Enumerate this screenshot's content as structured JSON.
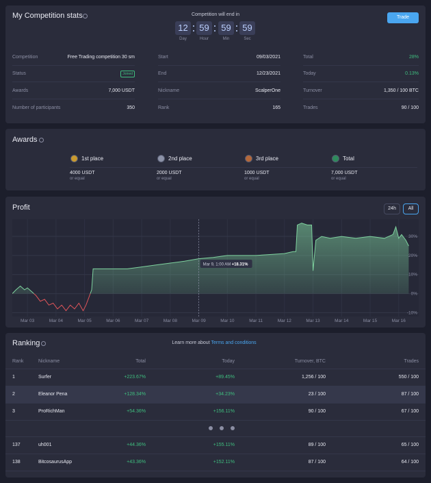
{
  "stats": {
    "title": "My Competition stats",
    "timer_caption": "Competition will end in",
    "timer": [
      {
        "value": "12",
        "unit": "Day"
      },
      {
        "value": "59",
        "unit": "Hour"
      },
      {
        "value": "59",
        "unit": "Min"
      },
      {
        "value": "59",
        "unit": "Sec"
      }
    ],
    "trade_button": "Trade",
    "columns": [
      [
        {
          "label": "Competition",
          "value": "Free Trading competition 30 sm"
        },
        {
          "label": "Status",
          "value": "Joined",
          "badge": true
        },
        {
          "label": "Awards",
          "value": "7,000 USDT"
        },
        {
          "label": "Number of participants",
          "value": "350"
        }
      ],
      [
        {
          "label": "Start",
          "value": "09/03/2021"
        },
        {
          "label": "End",
          "value": "12/23/2021"
        },
        {
          "label": "Nickname",
          "value": "ScalperOne"
        },
        {
          "label": "Rank",
          "value": "165"
        }
      ],
      [
        {
          "label": "Total",
          "value": "28%",
          "color": "#3fbf7f"
        },
        {
          "label": "Today",
          "value": "0.13%",
          "color": "#3fbf7f"
        },
        {
          "label": "Turnover",
          "value": "1,350 / 100 BTC"
        },
        {
          "label": "Trades",
          "value": "90 / 100"
        }
      ]
    ]
  },
  "awards": {
    "title": "Awards",
    "items": [
      {
        "place": "1st place",
        "amount": "4000 USDT",
        "note": "or equal",
        "color": "#c99a2e"
      },
      {
        "place": "2nd place",
        "amount": "2000 USDT",
        "note": "or equal",
        "color": "#8d93a8"
      },
      {
        "place": "3rd place",
        "amount": "1000 USDT",
        "note": "or equal",
        "color": "#b4683a"
      },
      {
        "place": "Total",
        "amount": "7,000 USDT",
        "note": "or equal",
        "color": "#2f8a5c"
      }
    ]
  },
  "profit_controls": [
    "24h",
    "All"
  ],
  "chart_data": {
    "type": "line",
    "title": "Profit",
    "color": "#7fd39f",
    "negative_color": "#e0555a",
    "x": [
      2.47,
      2.6,
      2.75,
      2.9,
      3.0,
      3.15,
      3.3,
      3.45,
      3.6,
      3.75,
      3.9,
      4.05,
      4.2,
      4.35,
      4.5,
      4.65,
      4.8,
      4.95,
      5.05,
      5.15,
      5.25,
      5.3,
      5.6,
      6.0,
      6.5,
      7.0,
      7.5,
      8.0,
      8.5,
      9.0,
      9.5,
      10.0,
      10.5,
      11.0,
      11.5,
      12.0,
      12.3,
      12.4,
      12.45,
      12.6,
      12.8,
      12.95,
      13.0,
      13.05,
      13.1,
      13.3,
      13.6,
      14.0,
      14.5,
      15.0,
      15.5,
      15.8,
      15.9,
      16.0,
      16.1,
      16.25,
      16.35
    ],
    "values": [
      0,
      2,
      4,
      2,
      3,
      1,
      -1,
      -4,
      -3,
      -6,
      -5,
      -8,
      -6,
      -9,
      -6,
      -8,
      -5,
      -9,
      -6,
      -2,
      2,
      13,
      13,
      13,
      13,
      14,
      15,
      16,
      17,
      18.3,
      19,
      20,
      20,
      20,
      20.5,
      21,
      22,
      22,
      36,
      37,
      36,
      36,
      12,
      20,
      28,
      30,
      29,
      30,
      29,
      30,
      29,
      31,
      35,
      29,
      31,
      28,
      25
    ],
    "xlim": [
      2.47,
      16.7
    ],
    "xticks": [
      {
        "value": 3,
        "label": "Mar 03"
      },
      {
        "value": 4,
        "label": "Mar 04"
      },
      {
        "value": 5,
        "label": "Mar 05"
      },
      {
        "value": 6,
        "label": "Mar 06"
      },
      {
        "value": 7,
        "label": "Mar 07"
      },
      {
        "value": 8,
        "label": "Mar 08"
      },
      {
        "value": 9,
        "label": "Mar 09"
      },
      {
        "value": 10,
        "label": "Mar 10"
      },
      {
        "value": 11,
        "label": "Mar 11"
      },
      {
        "value": 12,
        "label": "Mar 12"
      },
      {
        "value": 13,
        "label": "Mar 13"
      },
      {
        "value": 14,
        "label": "Mar 14"
      },
      {
        "value": 15,
        "label": "Mar 15"
      },
      {
        "value": 16,
        "label": "Mar 16"
      }
    ],
    "ylim": [
      -12,
      39
    ],
    "yticks": [
      {
        "value": -10,
        "label": "-10%"
      },
      {
        "value": 0,
        "label": "0%"
      },
      {
        "value": 10,
        "label": "10%"
      },
      {
        "value": 20,
        "label": "20%"
      },
      {
        "value": 30,
        "label": "30%"
      }
    ],
    "grid": true,
    "tooltip": {
      "date": "Mar 9, 1:00 AM",
      "value": "+18.31%"
    }
  },
  "ranking": {
    "title": "Ranking",
    "learn_more": "Learn more about",
    "link": "Terms and conditions",
    "headers": [
      "Rank",
      "Nickname",
      "Total",
      "Today",
      "Turnover, BTC",
      "Trades"
    ],
    "rows": [
      [
        "1",
        "Surfer",
        "+223.67%",
        "+89.45%",
        "1,256 / 100",
        "550 / 100"
      ],
      [
        "2",
        "Eleanor Pena",
        "+128.34%",
        "+34.23%",
        "23 / 100",
        "87 / 100"
      ],
      [
        "3",
        "ProRichMan",
        "+54.36%",
        "+156.11%",
        "90 / 100",
        "67 / 100"
      ]
    ],
    "highlight_row": 1,
    "more_rows": [
      [
        "137",
        "uh001",
        "+44.36%",
        "+155.11%",
        "89 / 100",
        "65 / 100"
      ],
      [
        "138",
        "BitcosaurusApp",
        "+43.36%",
        "+152.11%",
        "87 / 100",
        "64 / 100"
      ]
    ]
  }
}
